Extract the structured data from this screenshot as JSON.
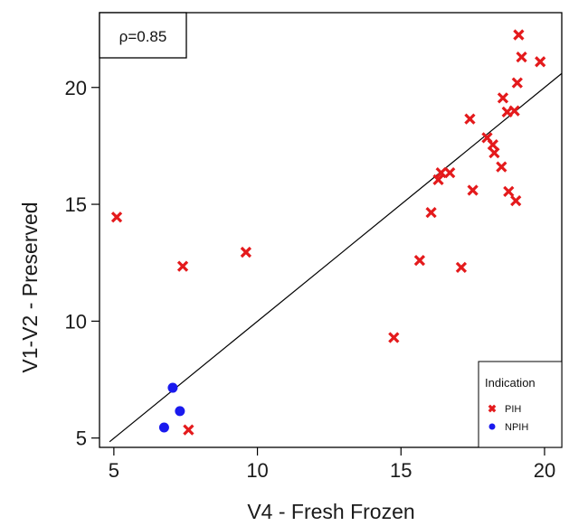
{
  "chart_data": {
    "type": "scatter",
    "title": "",
    "xlabel": "V4 - Fresh Frozen",
    "ylabel": "V1-V2   -   Preserved",
    "xlim": [
      4.5,
      20.6
    ],
    "ylim": [
      4.6,
      23.2
    ],
    "x_ticks": [
      5,
      10,
      15,
      20
    ],
    "y_ticks": [
      5,
      10,
      15,
      20
    ],
    "grid": false,
    "annotation": "ρ=0.85",
    "trend_line": {
      "x": [
        4.85,
        20.6
      ],
      "y": [
        4.84,
        20.6
      ]
    },
    "legend": {
      "title": "Indication",
      "placement": "bottom-right"
    },
    "series": [
      {
        "name": "PIH",
        "marker": "x",
        "color": "#e41a1c",
        "points": [
          [
            5.1,
            14.45
          ],
          [
            7.4,
            12.35
          ],
          [
            7.6,
            5.35
          ],
          [
            9.6,
            12.95
          ],
          [
            14.75,
            9.3
          ],
          [
            15.65,
            12.6
          ],
          [
            16.05,
            14.65
          ],
          [
            16.3,
            16.05
          ],
          [
            16.4,
            16.35
          ],
          [
            16.7,
            16.35
          ],
          [
            17.1,
            12.3
          ],
          [
            17.4,
            18.65
          ],
          [
            17.5,
            15.6
          ],
          [
            18.0,
            17.85
          ],
          [
            18.2,
            17.55
          ],
          [
            18.25,
            17.2
          ],
          [
            18.5,
            16.6
          ],
          [
            18.55,
            19.55
          ],
          [
            18.7,
            18.95
          ],
          [
            18.75,
            15.55
          ],
          [
            18.95,
            19.0
          ],
          [
            19.0,
            15.15
          ],
          [
            19.05,
            20.2
          ],
          [
            19.1,
            22.25
          ],
          [
            19.2,
            21.3
          ],
          [
            19.85,
            21.1
          ]
        ]
      },
      {
        "name": "NPIH",
        "marker": "circle",
        "color": "#1a1aee",
        "points": [
          [
            6.75,
            5.45
          ],
          [
            7.05,
            7.15
          ],
          [
            7.3,
            6.15
          ]
        ]
      }
    ]
  }
}
